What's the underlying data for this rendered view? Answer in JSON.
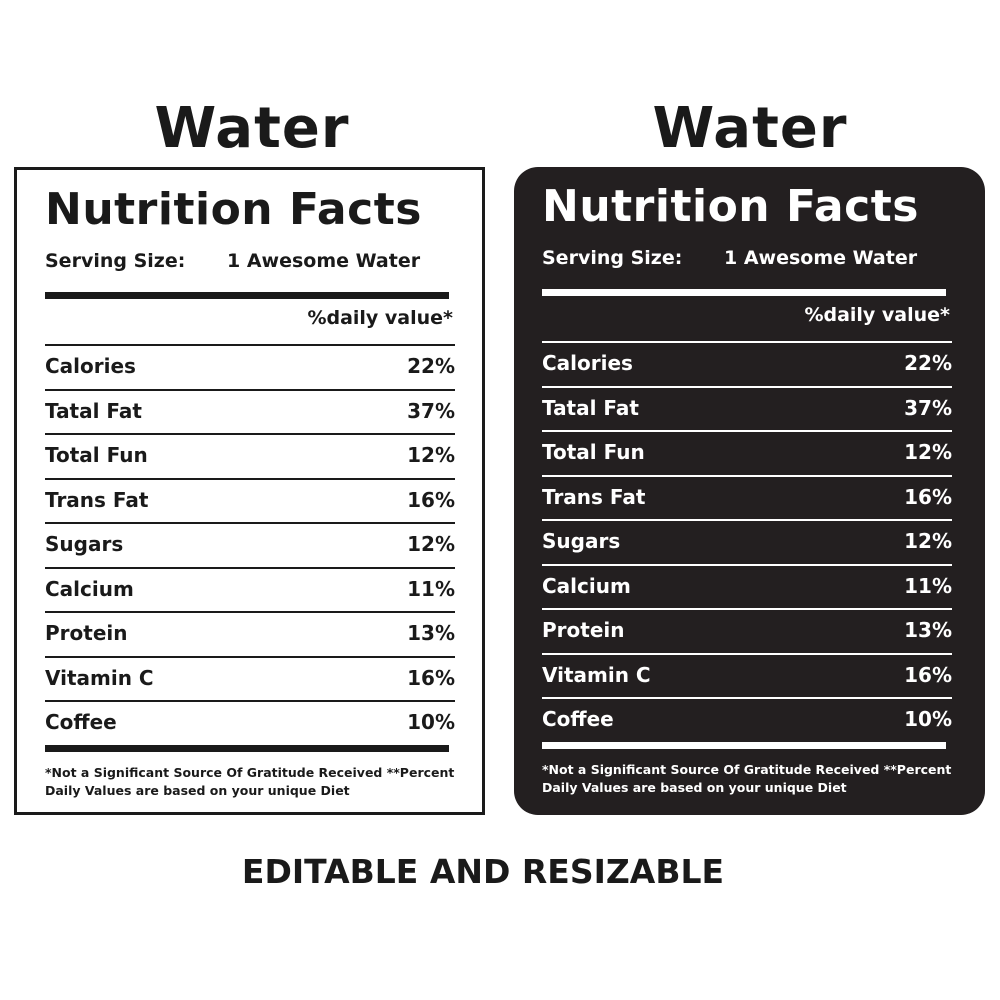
{
  "labels": [
    {
      "heading": "Water",
      "title": "Nutrition Facts",
      "serving_label": "Serving Size:",
      "serving_value": "1 Awesome Water",
      "dv_header": "%daily value*",
      "rows": [
        {
          "name": "Calories",
          "value": "22%"
        },
        {
          "name": "Tatal Fat",
          "value": "37%"
        },
        {
          "name": "Total Fun",
          "value": "12%"
        },
        {
          "name": "Trans Fat",
          "value": "16%"
        },
        {
          "name": "Sugars",
          "value": "12%"
        },
        {
          "name": "Calcium",
          "value": "11%"
        },
        {
          "name": "Protein",
          "value": "13%"
        },
        {
          "name": "Vitamin C",
          "value": "16%"
        },
        {
          "name": "Coffee",
          "value": "10%"
        }
      ],
      "footnote": "*Not a Significant Source Of Gratitude Received **Percent Daily Values are based on your  unique Diet",
      "theme": {
        "background": "#ffffff",
        "text": "#1a1a1a"
      }
    },
    {
      "heading": "Water",
      "title": "Nutrition Facts",
      "serving_label": "Serving Size:",
      "serving_value": "1 Awesome Water",
      "dv_header": "%daily value*",
      "rows": [
        {
          "name": "Calories",
          "value": "22%"
        },
        {
          "name": "Tatal Fat",
          "value": "37%"
        },
        {
          "name": "Total Fun",
          "value": "12%"
        },
        {
          "name": "Trans Fat",
          "value": "16%"
        },
        {
          "name": "Sugars",
          "value": "12%"
        },
        {
          "name": "Calcium",
          "value": "11%"
        },
        {
          "name": "Protein",
          "value": "13%"
        },
        {
          "name": "Vitamin C",
          "value": "16%"
        },
        {
          "name": "Coffee",
          "value": "10%"
        }
      ],
      "footnote": "*Not a Significant Source Of Gratitude Received **Percent Daily Values are based on your  unique Diet",
      "theme": {
        "background": "#231f20",
        "text": "#ffffff"
      }
    }
  ],
  "caption": "EDITABLE AND RESIZABLE"
}
